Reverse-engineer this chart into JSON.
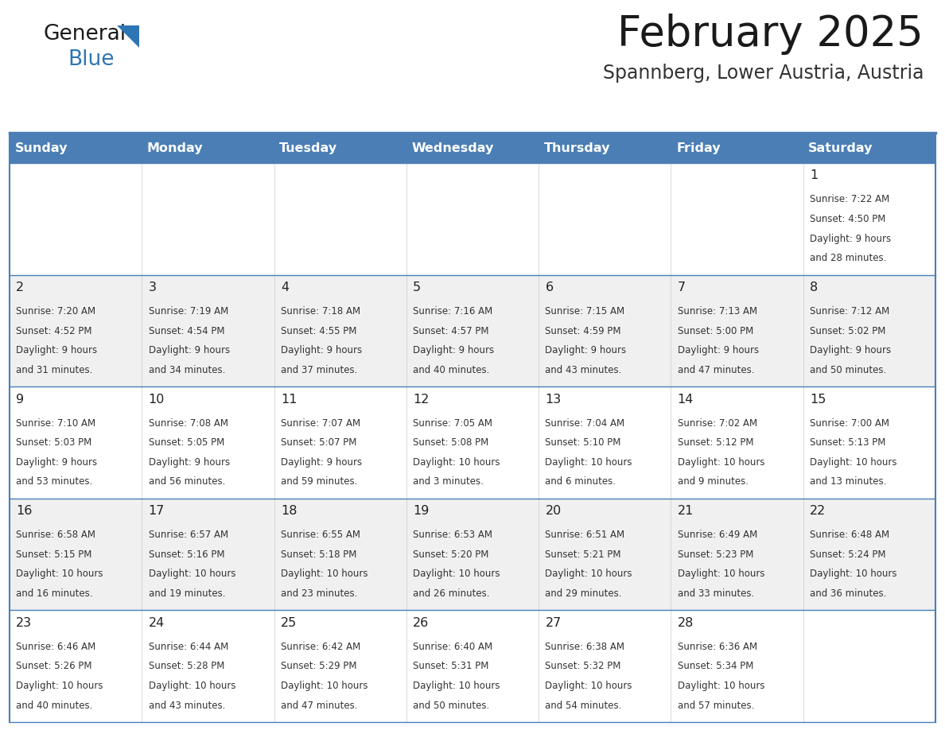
{
  "title": "February 2025",
  "subtitle": "Spannberg, Lower Austria, Austria",
  "header_color": "#4a7eb5",
  "header_text_color": "#ffffff",
  "weekdays": [
    "Sunday",
    "Monday",
    "Tuesday",
    "Wednesday",
    "Thursday",
    "Friday",
    "Saturday"
  ],
  "background_color": "#ffffff",
  "alt_row_color": "#f0f0f0",
  "cell_border_color": "#4a7eb5",
  "day_number_color": "#222222",
  "info_text_color": "#333333",
  "logo_general_color": "#1a1a1a",
  "logo_blue_color": "#2e75b6",
  "logo_triangle_color": "#2e75b6",
  "title_color": "#1a1a1a",
  "subtitle_color": "#333333",
  "calendar_data": [
    {
      "day": 1,
      "col": 6,
      "row": 0,
      "sunrise": "7:22 AM",
      "sunset": "4:50 PM",
      "daylight_hours": 9,
      "daylight_minutes": 28
    },
    {
      "day": 2,
      "col": 0,
      "row": 1,
      "sunrise": "7:20 AM",
      "sunset": "4:52 PM",
      "daylight_hours": 9,
      "daylight_minutes": 31
    },
    {
      "day": 3,
      "col": 1,
      "row": 1,
      "sunrise": "7:19 AM",
      "sunset": "4:54 PM",
      "daylight_hours": 9,
      "daylight_minutes": 34
    },
    {
      "day": 4,
      "col": 2,
      "row": 1,
      "sunrise": "7:18 AM",
      "sunset": "4:55 PM",
      "daylight_hours": 9,
      "daylight_minutes": 37
    },
    {
      "day": 5,
      "col": 3,
      "row": 1,
      "sunrise": "7:16 AM",
      "sunset": "4:57 PM",
      "daylight_hours": 9,
      "daylight_minutes": 40
    },
    {
      "day": 6,
      "col": 4,
      "row": 1,
      "sunrise": "7:15 AM",
      "sunset": "4:59 PM",
      "daylight_hours": 9,
      "daylight_minutes": 43
    },
    {
      "day": 7,
      "col": 5,
      "row": 1,
      "sunrise": "7:13 AM",
      "sunset": "5:00 PM",
      "daylight_hours": 9,
      "daylight_minutes": 47
    },
    {
      "day": 8,
      "col": 6,
      "row": 1,
      "sunrise": "7:12 AM",
      "sunset": "5:02 PM",
      "daylight_hours": 9,
      "daylight_minutes": 50
    },
    {
      "day": 9,
      "col": 0,
      "row": 2,
      "sunrise": "7:10 AM",
      "sunset": "5:03 PM",
      "daylight_hours": 9,
      "daylight_minutes": 53
    },
    {
      "day": 10,
      "col": 1,
      "row": 2,
      "sunrise": "7:08 AM",
      "sunset": "5:05 PM",
      "daylight_hours": 9,
      "daylight_minutes": 56
    },
    {
      "day": 11,
      "col": 2,
      "row": 2,
      "sunrise": "7:07 AM",
      "sunset": "5:07 PM",
      "daylight_hours": 9,
      "daylight_minutes": 59
    },
    {
      "day": 12,
      "col": 3,
      "row": 2,
      "sunrise": "7:05 AM",
      "sunset": "5:08 PM",
      "daylight_hours": 10,
      "daylight_minutes": 3
    },
    {
      "day": 13,
      "col": 4,
      "row": 2,
      "sunrise": "7:04 AM",
      "sunset": "5:10 PM",
      "daylight_hours": 10,
      "daylight_minutes": 6
    },
    {
      "day": 14,
      "col": 5,
      "row": 2,
      "sunrise": "7:02 AM",
      "sunset": "5:12 PM",
      "daylight_hours": 10,
      "daylight_minutes": 9
    },
    {
      "day": 15,
      "col": 6,
      "row": 2,
      "sunrise": "7:00 AM",
      "sunset": "5:13 PM",
      "daylight_hours": 10,
      "daylight_minutes": 13
    },
    {
      "day": 16,
      "col": 0,
      "row": 3,
      "sunrise": "6:58 AM",
      "sunset": "5:15 PM",
      "daylight_hours": 10,
      "daylight_minutes": 16
    },
    {
      "day": 17,
      "col": 1,
      "row": 3,
      "sunrise": "6:57 AM",
      "sunset": "5:16 PM",
      "daylight_hours": 10,
      "daylight_minutes": 19
    },
    {
      "day": 18,
      "col": 2,
      "row": 3,
      "sunrise": "6:55 AM",
      "sunset": "5:18 PM",
      "daylight_hours": 10,
      "daylight_minutes": 23
    },
    {
      "day": 19,
      "col": 3,
      "row": 3,
      "sunrise": "6:53 AM",
      "sunset": "5:20 PM",
      "daylight_hours": 10,
      "daylight_minutes": 26
    },
    {
      "day": 20,
      "col": 4,
      "row": 3,
      "sunrise": "6:51 AM",
      "sunset": "5:21 PM",
      "daylight_hours": 10,
      "daylight_minutes": 29
    },
    {
      "day": 21,
      "col": 5,
      "row": 3,
      "sunrise": "6:49 AM",
      "sunset": "5:23 PM",
      "daylight_hours": 10,
      "daylight_minutes": 33
    },
    {
      "day": 22,
      "col": 6,
      "row": 3,
      "sunrise": "6:48 AM",
      "sunset": "5:24 PM",
      "daylight_hours": 10,
      "daylight_minutes": 36
    },
    {
      "day": 23,
      "col": 0,
      "row": 4,
      "sunrise": "6:46 AM",
      "sunset": "5:26 PM",
      "daylight_hours": 10,
      "daylight_minutes": 40
    },
    {
      "day": 24,
      "col": 1,
      "row": 4,
      "sunrise": "6:44 AM",
      "sunset": "5:28 PM",
      "daylight_hours": 10,
      "daylight_minutes": 43
    },
    {
      "day": 25,
      "col": 2,
      "row": 4,
      "sunrise": "6:42 AM",
      "sunset": "5:29 PM",
      "daylight_hours": 10,
      "daylight_minutes": 47
    },
    {
      "day": 26,
      "col": 3,
      "row": 4,
      "sunrise": "6:40 AM",
      "sunset": "5:31 PM",
      "daylight_hours": 10,
      "daylight_minutes": 50
    },
    {
      "day": 27,
      "col": 4,
      "row": 4,
      "sunrise": "6:38 AM",
      "sunset": "5:32 PM",
      "daylight_hours": 10,
      "daylight_minutes": 54
    },
    {
      "day": 28,
      "col": 5,
      "row": 4,
      "sunrise": "6:36 AM",
      "sunset": "5:34 PM",
      "daylight_hours": 10,
      "daylight_minutes": 57
    }
  ]
}
